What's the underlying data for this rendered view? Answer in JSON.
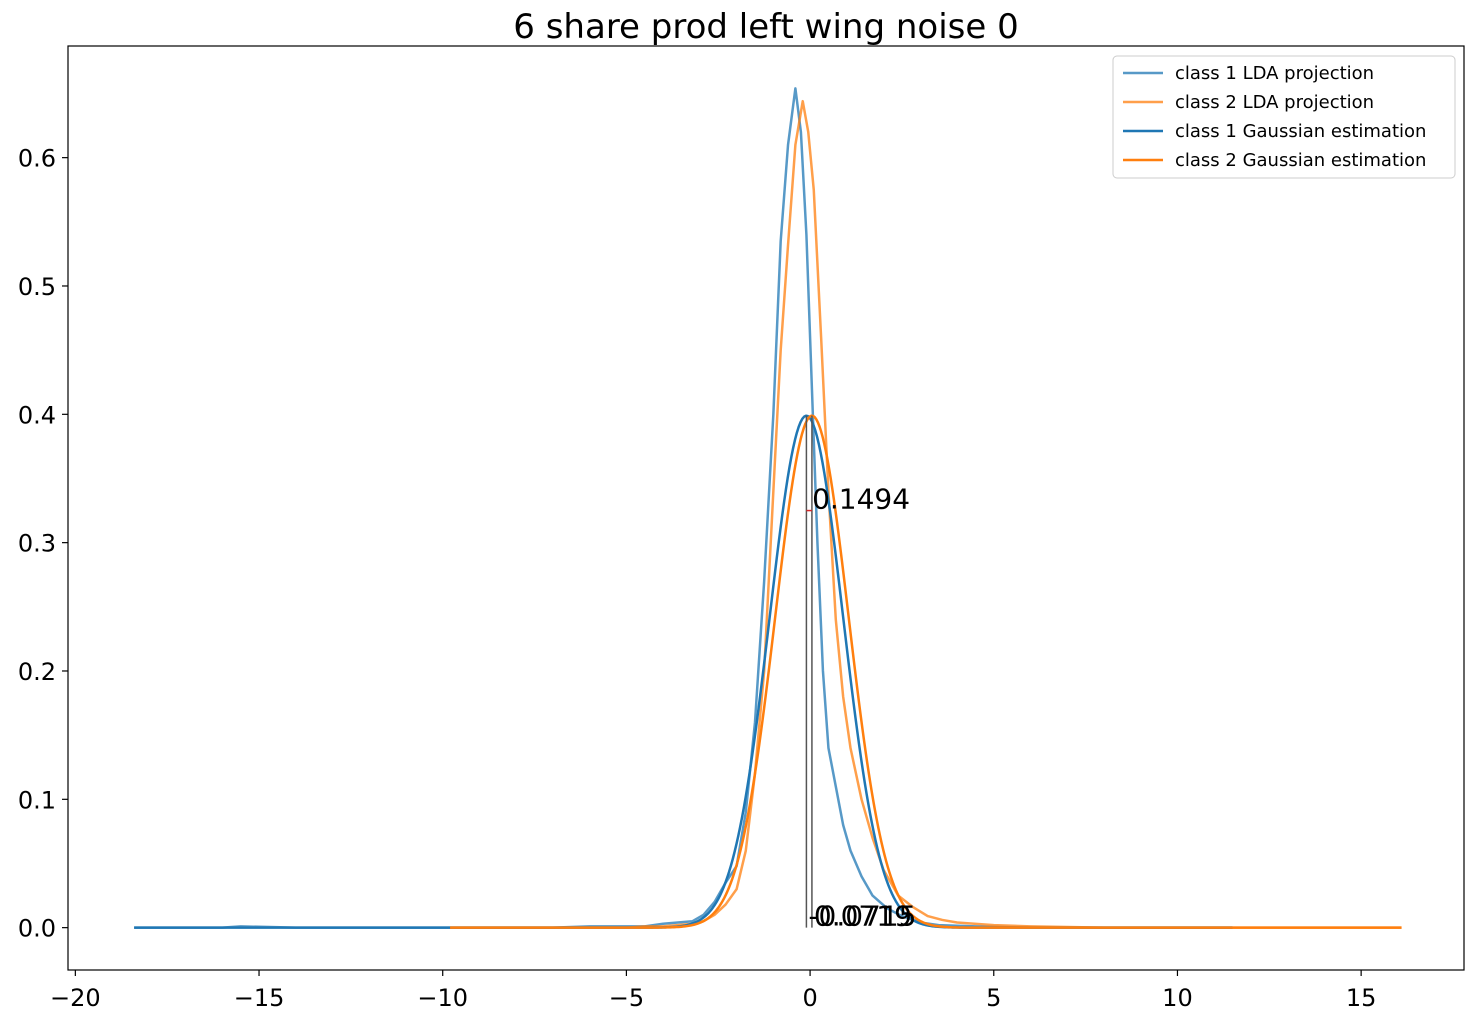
{
  "chart_data": {
    "type": "line",
    "title": "6 share prod left wing noise 0",
    "xlabel": "",
    "ylabel": "",
    "xlim": [
      -20.2,
      17.8
    ],
    "ylim": [
      -0.033,
      0.687
    ],
    "xticks": [
      -20,
      -15,
      -10,
      -5,
      0,
      5,
      10,
      15
    ],
    "xtick_labels": [
      "−20",
      "−15",
      "−10",
      "−5",
      "0",
      "5",
      "10",
      "15"
    ],
    "yticks": [
      0.0,
      0.1,
      0.2,
      0.3,
      0.4,
      0.5,
      0.6
    ],
    "ytick_labels": [
      "0.0",
      "0.1",
      "0.2",
      "0.3",
      "0.4",
      "0.5",
      "0.6"
    ],
    "grid": false,
    "legend_position": "top-right",
    "series": [
      {
        "name": "class 1 LDA projection",
        "color": "#1f77b4",
        "x": [
          -18.4,
          -16,
          -15.5,
          -14,
          -12,
          -10,
          -8,
          -7,
          -6,
          -5.5,
          -5,
          -4.5,
          -4,
          -3.6,
          -3.2,
          -2.9,
          -2.6,
          -2.3,
          -2.0,
          -1.75,
          -1.5,
          -1.25,
          -1.0,
          -0.8,
          -0.6,
          -0.4,
          -0.25,
          -0.1,
          0.05,
          0.2,
          0.35,
          0.5,
          0.7,
          0.9,
          1.1,
          1.4,
          1.7,
          2.1,
          2.5,
          3.0,
          3.5,
          4.5,
          6,
          8,
          10,
          11.5
        ],
        "y": [
          0.0,
          0.0,
          0.001,
          0.0,
          0.0,
          0.0,
          0.0,
          0.0,
          0.001,
          0.001,
          0.001,
          0.001,
          0.003,
          0.004,
          0.005,
          0.01,
          0.02,
          0.035,
          0.048,
          0.09,
          0.16,
          0.27,
          0.4,
          0.535,
          0.61,
          0.654,
          0.62,
          0.54,
          0.42,
          0.3,
          0.2,
          0.14,
          0.11,
          0.08,
          0.06,
          0.04,
          0.025,
          0.015,
          0.009,
          0.004,
          0.002,
          0.001,
          0.0,
          0.0,
          0.0,
          0.0
        ]
      },
      {
        "name": "class 2 LDA projection",
        "color": "#ff7f0e",
        "x": [
          -9.8,
          -8,
          -7,
          -6,
          -5,
          -4.5,
          -4,
          -3.6,
          -3.2,
          -2.9,
          -2.6,
          -2.3,
          -2.0,
          -1.75,
          -1.5,
          -1.25,
          -1.0,
          -0.8,
          -0.6,
          -0.4,
          -0.2,
          -0.05,
          0.1,
          0.3,
          0.5,
          0.7,
          0.9,
          1.1,
          1.4,
          1.7,
          2.0,
          2.4,
          2.8,
          3.2,
          3.6,
          4.0,
          5,
          6,
          8,
          10,
          12,
          14,
          16.1
        ],
        "y": [
          0.0,
          0.0,
          0.0,
          0.0,
          0.0,
          0.001,
          0.001,
          0.002,
          0.003,
          0.005,
          0.01,
          0.018,
          0.03,
          0.06,
          0.12,
          0.2,
          0.34,
          0.45,
          0.532,
          0.61,
          0.644,
          0.62,
          0.575,
          0.46,
          0.34,
          0.24,
          0.18,
          0.14,
          0.1,
          0.07,
          0.045,
          0.025,
          0.016,
          0.009,
          0.006,
          0.004,
          0.002,
          0.001,
          0.0,
          0.0,
          0.0,
          0.0,
          0.0
        ]
      },
      {
        "name": "class 1 Gaussian estimation",
        "color": "#1f77b4",
        "gaussian": {
          "mu": -0.1,
          "sigma": 1.0,
          "xmin": -18.4,
          "xmax": 11.5
        }
      },
      {
        "name": "class 2 Gaussian estimation",
        "color": "#ff7f0e",
        "gaussian": {
          "mu": 0.05,
          "sigma": 1.0,
          "xmin": -9.8,
          "xmax": 16.1
        }
      }
    ],
    "annotations": [
      {
        "text": "0.1494",
        "x": 0.0,
        "y": 0.325
      },
      {
        "text": "-0.0715",
        "x": -0.1,
        "y": 0.0
      },
      {
        "text": "0.0719",
        "x": 0.05,
        "y": 0.0
      }
    ]
  }
}
